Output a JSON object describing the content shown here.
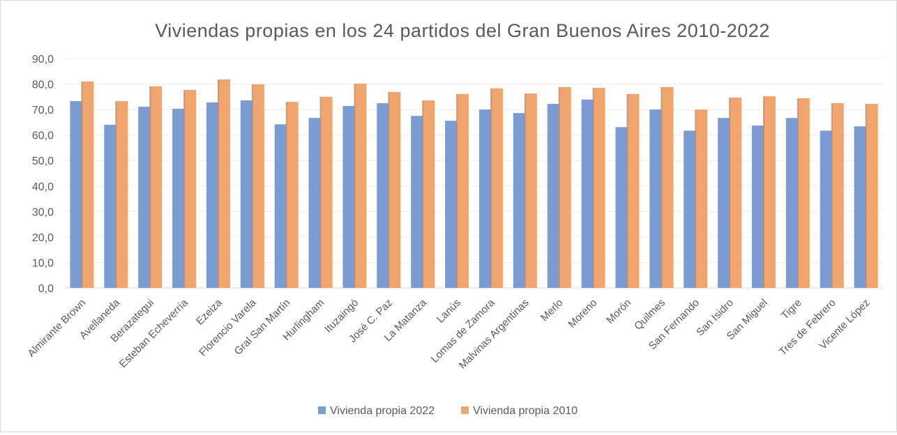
{
  "chart_data": {
    "type": "bar",
    "title": "Viviendas propias en los 24 partidos del Gran Buenos Aires 2010-2022",
    "xlabel": "",
    "ylabel": "",
    "ylim": [
      0,
      90
    ],
    "yticks": [
      "0,0",
      "10,0",
      "20,0",
      "30,0",
      "40,0",
      "50,0",
      "60,0",
      "70,0",
      "80,0",
      "90,0"
    ],
    "grid": true,
    "legend_position": "bottom",
    "categories": [
      "Almirante  Brown",
      "Avellaneda",
      "Berazategui",
      "Esteban  Echeverría",
      "Ezeiza",
      "Florencio  Varela",
      "Gral San Martín",
      "Hurlingham",
      "Ituzaingó",
      "José C. Paz",
      "La Matanza",
      "Lanús",
      "Lomas de Zamora",
      "Malvinas  Argentinas",
      "Merlo",
      "Moreno",
      "Morón",
      "Quilmes",
      "San Fernando",
      "San Isidro",
      "San Miguel",
      "Tigre",
      "Tres de Febrero",
      "Vicente  López"
    ],
    "series": [
      {
        "name": "Vivienda propia 2022",
        "color": "#7b9bd3",
        "values": [
          73.3,
          64.0,
          71.1,
          70.3,
          72.8,
          73.6,
          64.2,
          66.7,
          71.4,
          72.5,
          67.5,
          65.6,
          70.0,
          68.6,
          72.2,
          73.9,
          63.1,
          70.0,
          61.7,
          66.7,
          63.7,
          66.7,
          61.7,
          63.4
        ]
      },
      {
        "name": "Vivienda propia 2010",
        "color": "#f0a46e",
        "values": [
          81.0,
          73.3,
          79.1,
          77.7,
          81.8,
          79.9,
          73.0,
          75.0,
          80.2,
          76.9,
          73.6,
          76.1,
          78.3,
          76.3,
          78.8,
          78.5,
          76.1,
          78.8,
          70.0,
          74.7,
          75.2,
          74.4,
          72.5,
          72.2
        ]
      }
    ]
  }
}
